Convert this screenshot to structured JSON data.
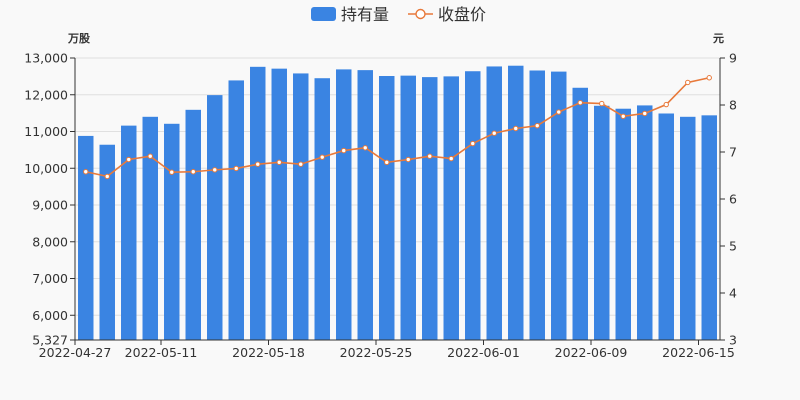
{
  "chart_data": {
    "type": "bar+line",
    "legend": {
      "placement": "top-center",
      "items": [
        {
          "name": "持有量",
          "kind": "bar",
          "color": "#3a84e2"
        },
        {
          "name": "收盘价",
          "kind": "line",
          "color": "#e8793a"
        }
      ]
    },
    "left_axis": {
      "unit": "万股",
      "min": 5327,
      "max": 13000,
      "tick_labels": [
        "5,327",
        "6,000",
        "7,000",
        "8,000",
        "9,000",
        "10,000",
        "11,000",
        "12,000",
        "13,000"
      ],
      "tick_values": [
        5327,
        6000,
        7000,
        8000,
        9000,
        10000,
        11000,
        12000,
        13000
      ]
    },
    "right_axis": {
      "unit": "元",
      "min": 3,
      "max": 9,
      "tick_labels": [
        "3",
        "4",
        "5",
        "6",
        "7",
        "8",
        "9"
      ],
      "tick_values": [
        3,
        4,
        5,
        6,
        7,
        8,
        9
      ]
    },
    "x_tick_labels": [
      "2022-04-27",
      "2022-05-11",
      "2022-05-18",
      "2022-05-25",
      "2022-06-01",
      "2022-06-09",
      "2022-06-15"
    ],
    "x_tick_indices": [
      0,
      4,
      9,
      14,
      19,
      24,
      29
    ],
    "grid": "horizontal",
    "series": [
      {
        "name": "持有量",
        "axis": "left",
        "values": [
          10880,
          10640,
          11160,
          11400,
          11210,
          11590,
          11990,
          12390,
          12760,
          12710,
          12580,
          12450,
          12690,
          12670,
          12510,
          12520,
          12480,
          12500,
          12640,
          12770,
          12790,
          12660,
          12630,
          12190,
          11700,
          11620,
          11710,
          11490,
          11400,
          11440
        ]
      },
      {
        "name": "收盘价",
        "axis": "right",
        "values": [
          6.58,
          6.48,
          6.84,
          6.91,
          6.57,
          6.58,
          6.62,
          6.65,
          6.74,
          6.78,
          6.74,
          6.89,
          7.03,
          7.09,
          6.78,
          6.84,
          6.91,
          6.86,
          7.18,
          7.4,
          7.5,
          7.56,
          7.85,
          8.05,
          8.03,
          7.76,
          7.82,
          8.01,
          8.48,
          8.58
        ]
      }
    ]
  }
}
